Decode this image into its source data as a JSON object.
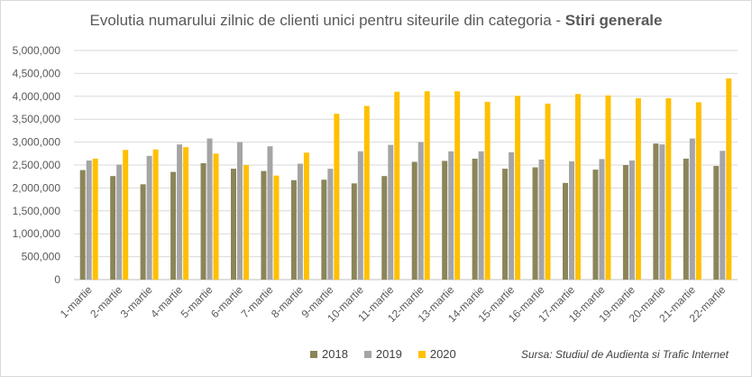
{
  "title_main": "Evolutia numarului zilnic de clienti unici pentru siteurile din categoria - ",
  "title_bold": "Stiri generale",
  "source": "Sursa: Studiul de Audienta si Trafic Internet",
  "colors": {
    "2018": "#8b8559",
    "2019": "#a5a5a5",
    "2020": "#ffc000"
  },
  "chart_data": {
    "type": "bar",
    "title": "Evolutia numarului zilnic de clienti unici pentru siteurile din categoria - Stiri generale",
    "categories": [
      "1-martie",
      "2-martie",
      "3-martie",
      "4-martie",
      "5-martie",
      "6-martie",
      "7-martie",
      "8-martie",
      "9-martie",
      "10-martie",
      "11-martie",
      "12-martie",
      "13-martie",
      "14-martie",
      "15-martie",
      "16-martie",
      "17-martie",
      "18-martie",
      "19-martie",
      "20-martie",
      "21-martie",
      "22-martie"
    ],
    "series": [
      {
        "name": "2018",
        "values": [
          2390000,
          2260000,
          2080000,
          2350000,
          2540000,
          2420000,
          2370000,
          2170000,
          2180000,
          2100000,
          2260000,
          2570000,
          2590000,
          2640000,
          2420000,
          2450000,
          2110000,
          2400000,
          2500000,
          2970000,
          2640000,
          2480000
        ]
      },
      {
        "name": "2019",
        "values": [
          2600000,
          2510000,
          2700000,
          2950000,
          3080000,
          3000000,
          2910000,
          2530000,
          2420000,
          2800000,
          2940000,
          3000000,
          2800000,
          2800000,
          2780000,
          2620000,
          2580000,
          2630000,
          2600000,
          2950000,
          3080000,
          2810000
        ]
      },
      {
        "name": "2020",
        "values": [
          2640000,
          2830000,
          2840000,
          2890000,
          2750000,
          2500000,
          2270000,
          2770000,
          3620000,
          3790000,
          4100000,
          4110000,
          4110000,
          3880000,
          4010000,
          3840000,
          4050000,
          4020000,
          3960000,
          3960000,
          3870000,
          4390000
        ]
      }
    ],
    "ylim": [
      0,
      5000000
    ],
    "yticks": [
      "0",
      "500,000",
      "1,000,000",
      "1,500,000",
      "2,000,000",
      "2,500,000",
      "3,000,000",
      "3,500,000",
      "4,000,000",
      "4,500,000",
      "5,000,000"
    ],
    "grid": true,
    "legend": "bottom"
  }
}
